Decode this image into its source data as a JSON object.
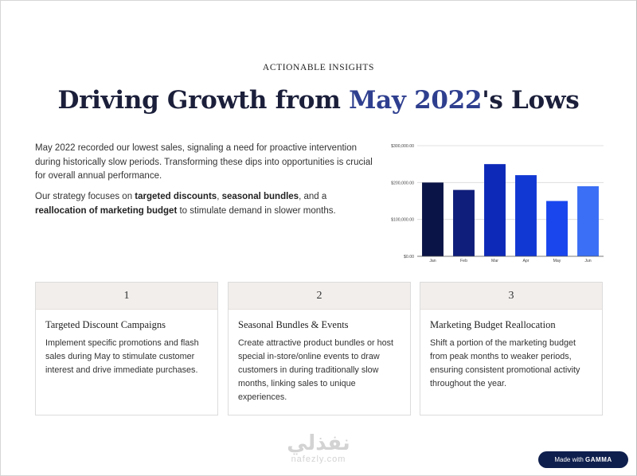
{
  "header": {
    "eyebrow": "ACTIONABLE INSIGHTS",
    "title_main": "Driving Growth from ",
    "title_accent": "May 2022",
    "title_end": "'s Lows"
  },
  "intro": {
    "p1": "May 2022 recorded our lowest sales, signaling a need for proactive intervention during historically slow periods. Transforming these dips into opportunities is crucial for overall annual performance.",
    "p2_a": "Our strategy focuses on ",
    "p2_b": "targeted discounts",
    "p2_c": ", ",
    "p2_d": "seasonal bundles",
    "p2_e": ", and a ",
    "p2_f": "reallocation of marketing budget",
    "p2_g": " to stimulate demand in slower months."
  },
  "chart_data": {
    "type": "bar",
    "categories": [
      "Jan",
      "Feb",
      "Mar",
      "Apr",
      "May",
      "Jun"
    ],
    "values": [
      200000,
      180000,
      250000,
      220000,
      150000,
      190000
    ],
    "yticks": [
      0,
      100000,
      200000,
      300000
    ],
    "ytick_labels": [
      "$0.00",
      "$100,000.00",
      "$200,000.00",
      "$300,000.00"
    ],
    "ylim": [
      0,
      300000
    ],
    "grid": true,
    "colors": [
      "#0b1446",
      "#0f1e7a",
      "#0d29b8",
      "#1238d4",
      "#1a46ee",
      "#3b6ff5"
    ]
  },
  "cards": [
    {
      "num": "1",
      "title": "Targeted Discount Campaigns",
      "body": "Implement specific promotions and flash sales during May to stimulate customer interest and drive immediate purchases."
    },
    {
      "num": "2",
      "title": "Seasonal Bundles & Events",
      "body": "Create attractive product bundles or host special in-store/online events to draw customers in during traditionally slow months, linking sales to unique experiences."
    },
    {
      "num": "3",
      "title": "Marketing Budget Reallocation",
      "body": "Shift a portion of the marketing budget from peak months to weaker periods, ensuring consistent promotional activity throughout the year."
    }
  ],
  "watermark": {
    "arabic": "نفذلي",
    "latin": "nafezly.com"
  },
  "badge": {
    "prefix": "Made with ",
    "brand": "GAMMA"
  }
}
